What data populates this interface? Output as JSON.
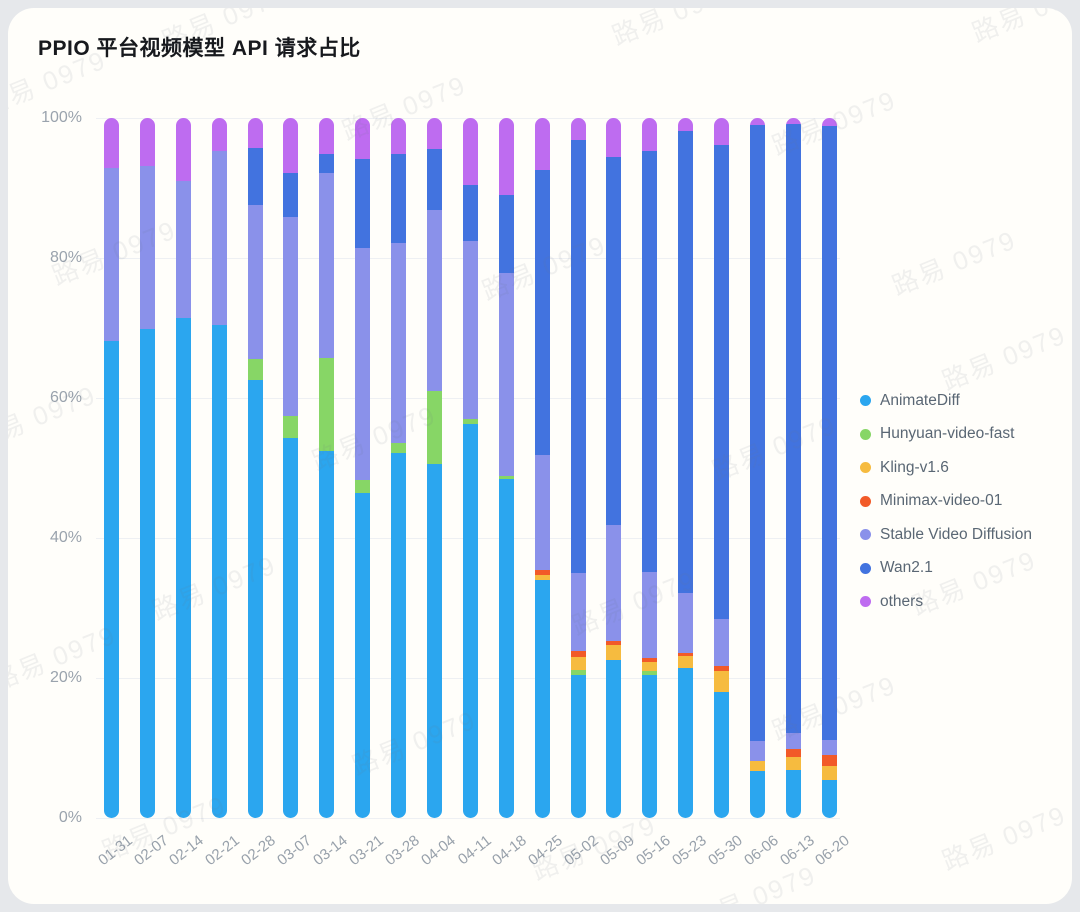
{
  "page": {
    "title": "PPIO 平台视频模型 API 请求占比"
  },
  "watermark": {
    "text": "路易 0979"
  },
  "chart_data": {
    "type": "bar",
    "stacked": true,
    "title": "PPIO 平台视频模型 API 请求占比",
    "unit": "%",
    "ylim": [
      0,
      100
    ],
    "grid": true,
    "legend_position": "right",
    "y_ticks": [
      "0%",
      "20%",
      "40%",
      "60%",
      "80%",
      "100%"
    ],
    "categories": [
      "01-31",
      "02-07",
      "02-14",
      "02-21",
      "02-28",
      "03-07",
      "03-14",
      "03-21",
      "03-28",
      "04-04",
      "04-11",
      "04-18",
      "04-25",
      "05-02",
      "05-09",
      "05-16",
      "05-23",
      "05-30",
      "06-06",
      "06-13",
      "06-20"
    ],
    "series": [
      {
        "name": "AnimateDiff",
        "color": "#2BA6EF",
        "values": [
          68.1,
          69.8,
          71.5,
          70.4,
          62.6,
          54.3,
          52.4,
          46.4,
          52.1,
          50.6,
          56.3,
          48.4,
          34.0,
          20.5,
          22.6,
          20.4,
          21.4,
          18.0,
          6.7,
          6.9,
          5.5
        ]
      },
      {
        "name": "Hunyuan-video-fast",
        "color": "#87D666",
        "values": [
          0,
          0,
          0,
          0,
          3.0,
          3.1,
          13.3,
          1.9,
          1.5,
          10.4,
          0.7,
          0.4,
          0,
          0.7,
          0,
          0.6,
          0,
          0,
          0,
          0,
          0
        ]
      },
      {
        "name": "Kling-v1.6",
        "color": "#F6BB3F",
        "values": [
          0,
          0,
          0,
          0,
          0,
          0,
          0,
          0,
          0,
          0,
          0,
          0,
          0.7,
          1.8,
          2.1,
          1.3,
          1.8,
          3.0,
          1.5,
          1.8,
          1.9
        ]
      },
      {
        "name": "Minimax-video-01",
        "color": "#F25A28",
        "values": [
          0,
          0,
          0,
          0,
          0,
          0,
          0,
          0,
          0,
          0,
          0,
          0,
          0.7,
          0.8,
          0.6,
          0.6,
          0.4,
          0.7,
          0,
          1.1,
          1.6
        ]
      },
      {
        "name": "Stable Video Diffusion",
        "color": "#8A91EA",
        "values": [
          24.8,
          23.3,
          19.5,
          24.9,
          22.0,
          28.5,
          26.4,
          33.1,
          28.5,
          25.9,
          25.4,
          29.0,
          16.5,
          11.2,
          16.5,
          12.3,
          8.5,
          6.8,
          2.8,
          2.3,
          2.2
        ]
      },
      {
        "name": "Wan2.1",
        "color": "#4273DF",
        "values": [
          0,
          0,
          0,
          0,
          8.1,
          6.2,
          2.7,
          12.8,
          12.8,
          8.7,
          8.0,
          11.2,
          40.7,
          61.9,
          52.7,
          60.1,
          66.0,
          67.6,
          88.0,
          87.0,
          87.6
        ]
      },
      {
        "name": "others",
        "color": "#BE6CF0",
        "values": [
          7.1,
          6.9,
          9.0,
          4.7,
          4.3,
          7.9,
          5.2,
          5.8,
          5.1,
          4.4,
          9.6,
          11.0,
          7.4,
          3.1,
          5.5,
          4.7,
          1.9,
          3.9,
          1.0,
          0.9,
          1.2
        ]
      }
    ]
  }
}
